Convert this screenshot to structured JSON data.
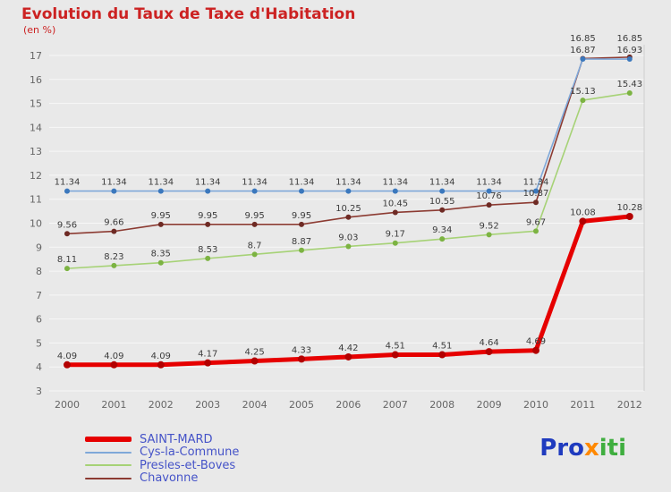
{
  "page": {
    "background": "#e9e9e9"
  },
  "chart_data": {
    "type": "line",
    "title": "Evolution du Taux de Taxe d'Habitation",
    "subtitle": "(en %)",
    "title_color": "#cc2222",
    "categories": [
      "2000",
      "2001",
      "2002",
      "2003",
      "2004",
      "2005",
      "2006",
      "2007",
      "2008",
      "2009",
      "2010",
      "2011",
      "2012"
    ],
    "ylim": [
      3,
      17
    ],
    "ytick_step": 1,
    "grid": "horizontal",
    "legend_position": "bottom-left",
    "axis_text_color": "#666666",
    "data_label_color": "#3c3c3c",
    "series": [
      {
        "name": "SAINT-MARD",
        "color": "#e60000",
        "marker_color": "#b30000",
        "width": 5,
        "values": [
          4.09,
          4.09,
          4.09,
          4.17,
          4.25,
          4.33,
          4.42,
          4.51,
          4.51,
          4.64,
          4.69,
          10.08,
          10.28
        ]
      },
      {
        "name": "Cys-la-Commune",
        "color": "#7fa8d9",
        "marker_color": "#3b78bd",
        "width": 1.6,
        "values": [
          11.34,
          11.34,
          11.34,
          11.34,
          11.34,
          11.34,
          11.34,
          11.34,
          11.34,
          11.34,
          11.34,
          16.85,
          16.85
        ]
      },
      {
        "name": "Presles-et-Boves",
        "color": "#a6d276",
        "marker_color": "#7cb342",
        "width": 1.6,
        "values": [
          8.11,
          8.23,
          8.35,
          8.53,
          8.7,
          8.87,
          9.03,
          9.17,
          9.34,
          9.52,
          9.67,
          15.13,
          15.43
        ]
      },
      {
        "name": "Chavonne",
        "color": "#8c3b32",
        "marker_color": "#6e2a24",
        "width": 1.6,
        "values": [
          9.56,
          9.66,
          9.95,
          9.95,
          9.95,
          9.95,
          10.25,
          10.45,
          10.55,
          10.76,
          10.87,
          16.87,
          16.93
        ]
      }
    ]
  },
  "legend": {
    "text_color": "#4553c8"
  },
  "logo": {
    "segments": [
      {
        "text": "Pro",
        "color": "#1f3bbf"
      },
      {
        "text": "x",
        "color": "#ff8800"
      },
      {
        "text": "iti",
        "color": "#3fae3f"
      }
    ]
  }
}
